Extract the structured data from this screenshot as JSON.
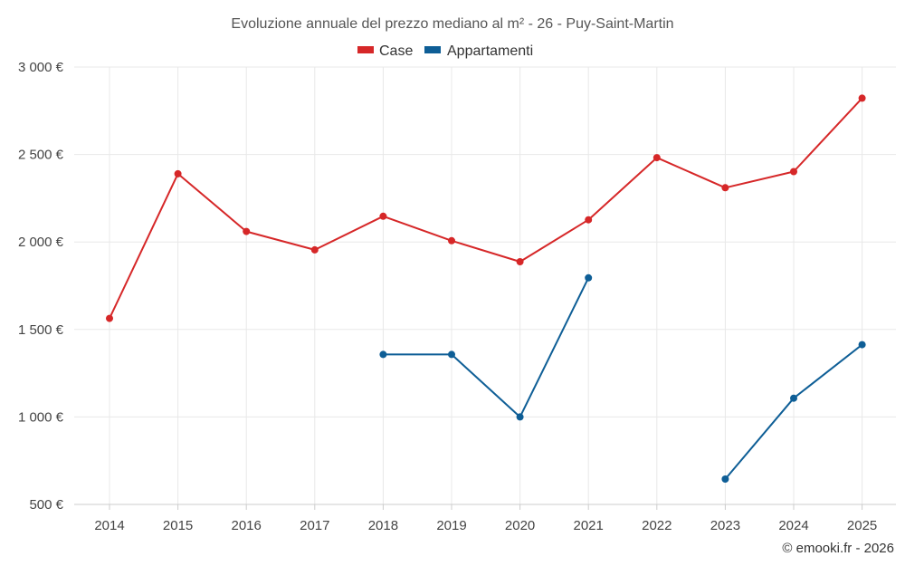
{
  "chart_data": {
    "type": "line",
    "title": "Evoluzione annuale del prezzo mediano al m² - 26 - Puy-Saint-Martin",
    "categories": [
      "2014",
      "2015",
      "2016",
      "2017",
      "2018",
      "2019",
      "2020",
      "2021",
      "2022",
      "2023",
      "2024",
      "2025"
    ],
    "ylim": [
      500,
      3000
    ],
    "yticks": [
      500,
      1000,
      1500,
      2000,
      2500,
      3000
    ],
    "ytick_labels": [
      "500 €",
      "1 000 €",
      "1 500 €",
      "2 000 €",
      "2 500 €",
      "3 000 €"
    ],
    "grid": true,
    "legend_position": "top-center",
    "series": [
      {
        "name": "Case",
        "color": "#d62728",
        "values": [
          1563,
          2390,
          2060,
          1955,
          2147,
          2007,
          1887,
          2127,
          2482,
          2310,
          2402,
          2822
        ]
      },
      {
        "name": "Appartamenti",
        "color": "#0e5e96",
        "values": [
          null,
          null,
          null,
          null,
          1357,
          1357,
          1000,
          1795,
          null,
          645,
          1107,
          1413
        ]
      }
    ]
  },
  "credit": "© emooki.fr - 2026"
}
